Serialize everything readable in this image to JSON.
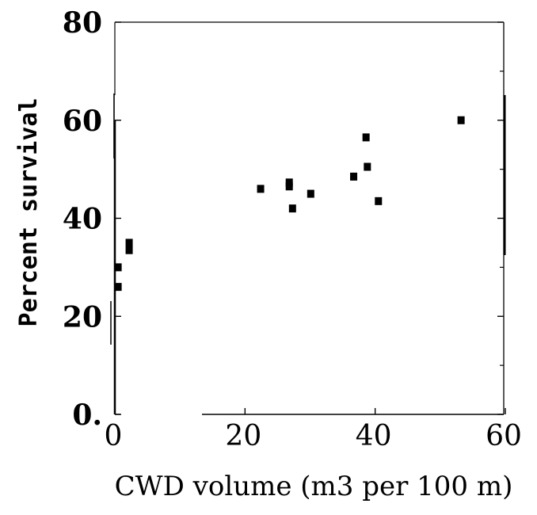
{
  "chart_data": {
    "type": "scatter",
    "xlabel": "CWD volume (m3 per 100 m)",
    "ylabel": "Percent survival",
    "xlim": [
      0,
      60
    ],
    "ylim": [
      0,
      80
    ],
    "x_ticks": [
      0,
      20,
      40,
      60
    ],
    "y_ticks": [
      0,
      20,
      40,
      60,
      80
    ],
    "x_tick_labels": [
      "0",
      "20",
      "40",
      "60"
    ],
    "y_tick_labels": [
      "0.",
      "20",
      "40",
      "60",
      "80"
    ],
    "grid": false,
    "legend": "none",
    "marker_color": "#000000",
    "points": [
      {
        "x": 0.5,
        "y": 30
      },
      {
        "x": 0.5,
        "y": 26
      },
      {
        "x": 2.2,
        "y": 35
      },
      {
        "x": 2.2,
        "y": 33.5
      },
      {
        "x": 22.4,
        "y": 46
      },
      {
        "x": 26.8,
        "y": 47.3
      },
      {
        "x": 26.8,
        "y": 46.5
      },
      {
        "x": 27.3,
        "y": 42
      },
      {
        "x": 30.1,
        "y": 45
      },
      {
        "x": 36.7,
        "y": 48.5
      },
      {
        "x": 38.6,
        "y": 56.5
      },
      {
        "x": 38.8,
        "y": 50.5
      },
      {
        "x": 40.5,
        "y": 43.5
      },
      {
        "x": 53.2,
        "y": 60
      }
    ]
  }
}
